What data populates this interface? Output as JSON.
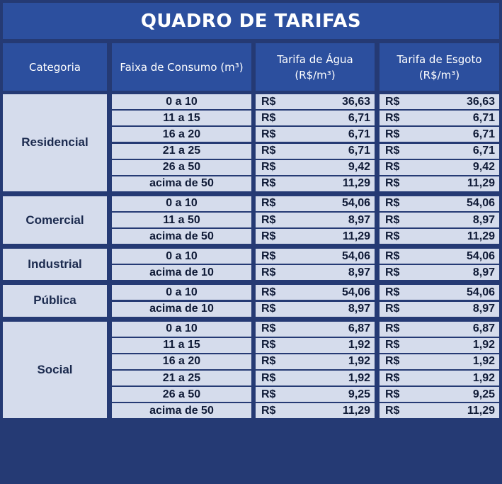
{
  "title": "QUADRO DE TARIFAS",
  "headers": {
    "categoria": "Categoria",
    "faixa": "Faixa de Consumo (m³)",
    "agua_line1": "Tarifa de Água",
    "agua_line2": "(R$/m³)",
    "esgoto_line1": "Tarifa de Esgoto",
    "esgoto_line2": "(R$/m³)"
  },
  "currency": "R$",
  "groups": [
    {
      "category": "Residencial",
      "rows": [
        {
          "faixa": "0 a 10",
          "agua": "36,63",
          "esgoto": "36,63"
        },
        {
          "faixa": "11 a 15",
          "agua": "6,71",
          "esgoto": "6,71"
        },
        {
          "faixa": "16 a 20",
          "agua": "6,71",
          "esgoto": "6,71"
        },
        {
          "faixa": "21 a 25",
          "agua": "6,71",
          "esgoto": "6,71"
        },
        {
          "faixa": "26 a 50",
          "agua": "9,42",
          "esgoto": "9,42"
        },
        {
          "faixa": "acima de 50",
          "agua": "11,29",
          "esgoto": "11,29"
        }
      ]
    },
    {
      "category": "Comercial",
      "rows": [
        {
          "faixa": "0 a 10",
          "agua": "54,06",
          "esgoto": "54,06"
        },
        {
          "faixa": "11 a 50",
          "agua": "8,97",
          "esgoto": "8,97"
        },
        {
          "faixa": "acima de 50",
          "agua": "11,29",
          "esgoto": "11,29"
        }
      ]
    },
    {
      "category": "Industrial",
      "rows": [
        {
          "faixa": "0 a 10",
          "agua": "54,06",
          "esgoto": "54,06"
        },
        {
          "faixa": "acima de 10",
          "agua": "8,97",
          "esgoto": "8,97"
        }
      ]
    },
    {
      "category": "Pública",
      "rows": [
        {
          "faixa": "0 a 10",
          "agua": "54,06",
          "esgoto": "54,06"
        },
        {
          "faixa": "acima de 10",
          "agua": "8,97",
          "esgoto": "8,97"
        }
      ]
    },
    {
      "category": "Social",
      "rows": [
        {
          "faixa": "0 a 10",
          "agua": "6,87",
          "esgoto": "6,87"
        },
        {
          "faixa": "11 a 15",
          "agua": "1,92",
          "esgoto": "1,92"
        },
        {
          "faixa": "16 a 20",
          "agua": "1,92",
          "esgoto": "1,92"
        },
        {
          "faixa": "21 a 25",
          "agua": "1,92",
          "esgoto": "1,92"
        },
        {
          "faixa": "26 a 50",
          "agua": "9,25",
          "esgoto": "9,25"
        },
        {
          "faixa": "acima de 50",
          "agua": "11,29",
          "esgoto": "11,29"
        }
      ]
    }
  ]
}
